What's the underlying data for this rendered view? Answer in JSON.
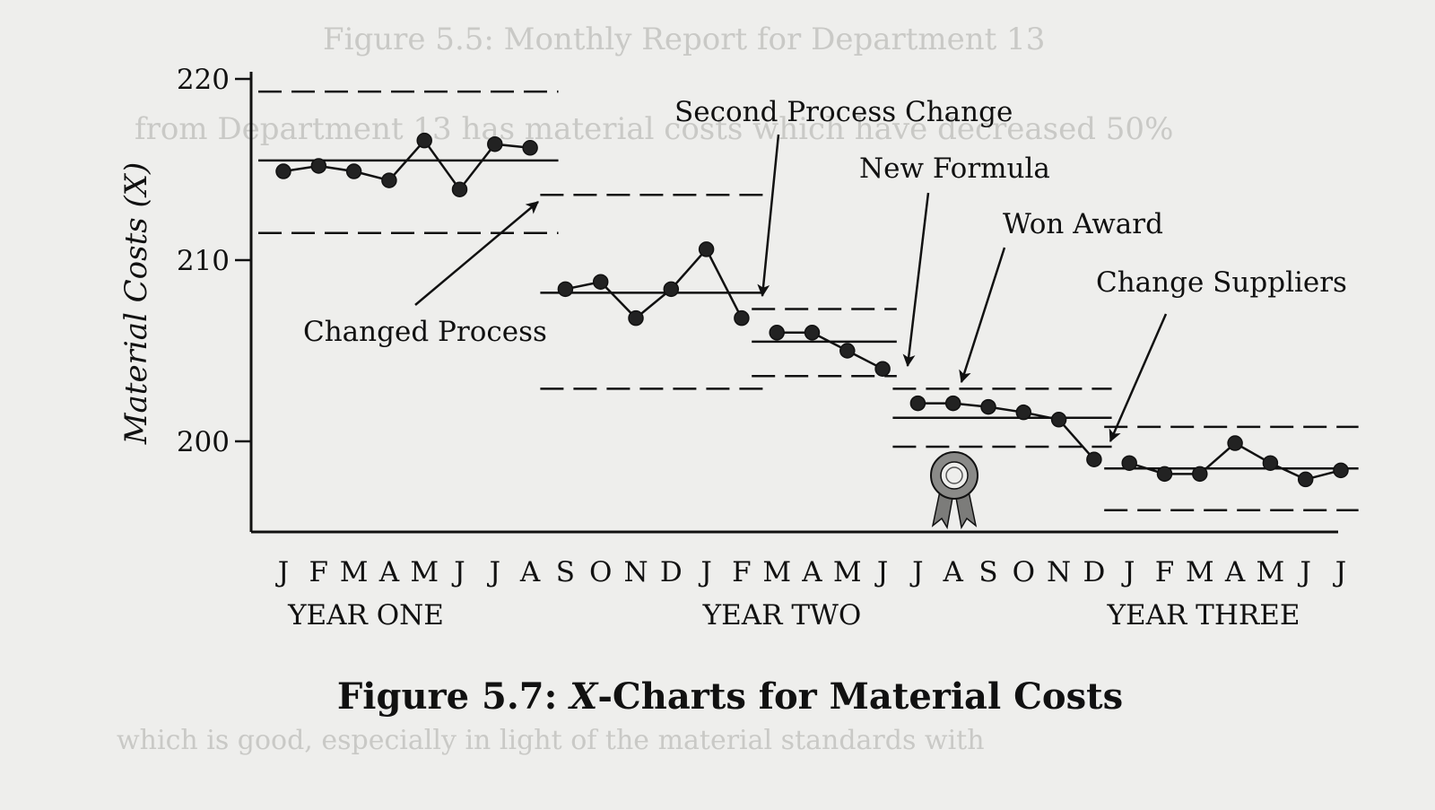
{
  "figure_caption": "Figure 5.7: X-Charts for Material Costs",
  "caption_prefix": "Figure 5.7:",
  "caption_var": "X",
  "caption_rest": "-Charts for Material Costs",
  "bleed_lines": [
    "Figure 5.5: Monthly Report for Department 13",
    "from Department 13 has material costs which have decreased 50%",
    "which is good, especially in light of the material standards with"
  ],
  "colors": {
    "ink": "#111111",
    "paper": "#eeeeec",
    "award": "#8a8a88"
  },
  "chart_data": {
    "type": "line",
    "title": "",
    "ylabel": "Material Costs",
    "ylabel_symbol": "X",
    "ylim": [
      195,
      220
    ],
    "y_ticks": [
      200,
      210,
      220
    ],
    "month_labels": [
      "J",
      "F",
      "M",
      "A",
      "M",
      "J",
      "J",
      "A",
      "S",
      "O",
      "N",
      "D",
      "J",
      "F",
      "M",
      "A",
      "M",
      "J",
      "J",
      "A",
      "S",
      "O",
      "N",
      "D",
      "J",
      "F",
      "M",
      "A",
      "M",
      "J",
      "J"
    ],
    "year_labels": [
      "YEAR ONE",
      "YEAR TWO",
      "YEAR THREE"
    ],
    "segments": [
      {
        "name": "",
        "x": [
          0,
          1,
          2,
          3,
          4,
          5,
          6,
          7
        ],
        "values": [
          214.9,
          215.2,
          214.9,
          214.4,
          216.6,
          213.9,
          216.4,
          216.2
        ],
        "center": 215.5,
        "ucl": 219.3,
        "lcl": 211.5,
        "span": [
          0,
          7.8
        ]
      },
      {
        "name": "",
        "x": [
          8,
          9,
          10,
          11,
          12,
          13
        ],
        "values": [
          208.4,
          208.8,
          206.8,
          208.4,
          210.6,
          206.8
        ],
        "center": 208.2,
        "ucl": 213.6,
        "lcl": 202.9,
        "span": [
          8,
          13.6
        ]
      },
      {
        "name": "",
        "x": [
          14,
          15,
          16,
          17
        ],
        "values": [
          206.0,
          206.0,
          205.0,
          204.0
        ],
        "center": 205.5,
        "ucl": 207.3,
        "lcl": 203.6,
        "span": [
          14,
          17.4
        ]
      },
      {
        "name": "",
        "x": [
          18,
          19,
          20,
          21,
          22,
          23
        ],
        "values": [
          202.1,
          202.1,
          201.9,
          201.6,
          201.2,
          199.0
        ],
        "center": 201.3,
        "ucl": 202.9,
        "lcl": 199.7,
        "span": [
          18,
          23.5
        ]
      },
      {
        "name": "",
        "x": [
          24,
          25,
          26,
          27,
          28,
          29,
          30
        ],
        "values": [
          198.8,
          198.2,
          198.2,
          199.9,
          198.8,
          197.9,
          198.4
        ],
        "center": 198.5,
        "ucl": 200.8,
        "lcl": 196.2,
        "span": [
          24,
          30.5
        ]
      }
    ],
    "annotations": [
      {
        "text": "Changed Process",
        "target_x": 7.7,
        "target_y": 213.6
      },
      {
        "text": "Second Process Change",
        "target_x": 13.6,
        "target_y": 207.9
      },
      {
        "text": "New Formula",
        "target_x": 17.8,
        "target_y": 204.0
      },
      {
        "text": "Won Award",
        "target_x": 19.4,
        "target_y": 203.2
      },
      {
        "text": "Change Suppliers",
        "target_x": 23.9,
        "target_y": 199.8
      }
    ],
    "award_icon": "ribbon-award-icon",
    "grid": false,
    "legend": "none"
  }
}
